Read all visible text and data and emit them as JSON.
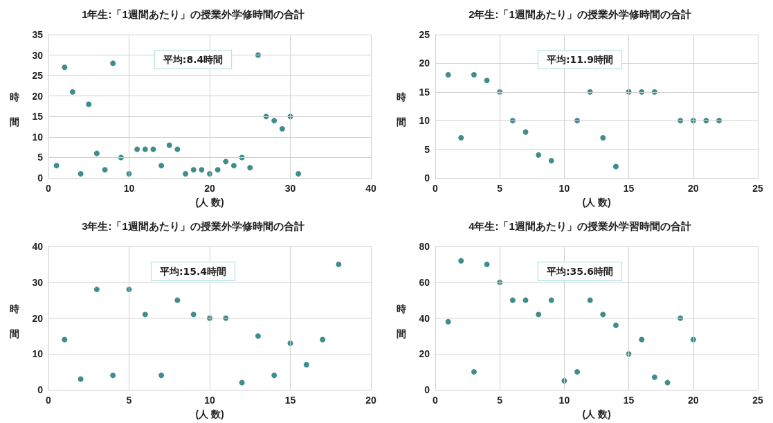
{
  "chart_data": [
    {
      "type": "scatter",
      "title": "1年生:「1週間あたり」の授業外学修時間の合計",
      "xlabel": "(人 数)",
      "ylabel": "時間",
      "annotations": [
        "平均:8.4時間"
      ],
      "x": [
        1,
        2,
        3,
        4,
        5,
        6,
        7,
        8,
        9,
        10,
        11,
        12,
        13,
        14,
        15,
        16,
        17,
        18,
        19,
        20,
        21,
        22,
        23,
        24,
        25,
        26,
        27,
        28,
        29,
        30,
        31
      ],
      "series": [
        {
          "color": "#0f7070",
          "values": [
            3,
            27,
            21,
            1,
            18,
            6,
            2,
            28,
            5,
            1,
            7,
            7,
            7,
            3,
            8,
            7,
            1,
            2,
            2,
            1,
            2,
            4,
            3,
            5,
            2.5,
            30,
            15,
            14,
            12,
            15,
            1
          ]
        }
      ],
      "xlim": [
        0,
        40
      ],
      "xticks": [
        0,
        10,
        20,
        30,
        40
      ],
      "ylim": [
        0,
        35
      ],
      "yticks": [
        0,
        5,
        10,
        15,
        20,
        25,
        30,
        35
      ],
      "grid": true,
      "marker": "circle"
    },
    {
      "type": "scatter",
      "title": "2年生:「1週間あたり」の授業外学修時間の合計",
      "xlabel": "(人 数)",
      "ylabel": "時間",
      "annotations": [
        "平均:11.9時間"
      ],
      "x": [
        1,
        2,
        3,
        4,
        5,
        6,
        7,
        8,
        9,
        11,
        12,
        13,
        14,
        15,
        16,
        17,
        19,
        20,
        21,
        22
      ],
      "series": [
        {
          "color": "#0f7070",
          "values": [
            18,
            7,
            18,
            17,
            15,
            10,
            8,
            4,
            3,
            10,
            15,
            7,
            2,
            15,
            15,
            15,
            10,
            10,
            10,
            10
          ]
        }
      ],
      "xlim": [
        0,
        25
      ],
      "xticks": [
        0,
        5,
        10,
        15,
        20,
        25
      ],
      "ylim": [
        0,
        25
      ],
      "yticks": [
        0,
        5,
        10,
        15,
        20,
        25
      ],
      "grid": true,
      "marker": "circle"
    },
    {
      "type": "scatter",
      "title": "3年生:「1週間あたり」の授業外学修時間の合計",
      "xlabel": "(人 数)",
      "ylabel": "時間",
      "annotations": [
        "平均:15.4時間"
      ],
      "x": [
        1,
        2,
        3,
        4,
        5,
        6,
        7,
        8,
        9,
        10,
        11,
        12,
        13,
        14,
        15,
        16,
        17,
        18
      ],
      "series": [
        {
          "color": "#0f7070",
          "values": [
            14,
            3,
            28,
            4,
            28,
            21,
            4,
            25,
            21,
            20,
            20,
            2,
            15,
            4,
            13,
            7,
            14,
            35
          ]
        }
      ],
      "xlim": [
        0,
        20
      ],
      "xticks": [
        0,
        5,
        10,
        15,
        20
      ],
      "ylim": [
        0,
        40
      ],
      "yticks": [
        0,
        10,
        20,
        30,
        40
      ],
      "grid": true,
      "marker": "circle"
    },
    {
      "type": "scatter",
      "title": "4年生:「1週間あたり」の授業外学習時間の合計",
      "xlabel": "(人 数)",
      "ylabel": "時間",
      "annotations": [
        "平均:35.6時間"
      ],
      "x": [
        1,
        2,
        3,
        4,
        5,
        6,
        7,
        8,
        9,
        10,
        11,
        12,
        13,
        14,
        15,
        16,
        17,
        18,
        19,
        20
      ],
      "series": [
        {
          "color": "#0f7070",
          "values": [
            38,
            72,
            10,
            70,
            60,
            50,
            50,
            42,
            50,
            5,
            10,
            50,
            42,
            36,
            20,
            28,
            7,
            4,
            40,
            28
          ]
        }
      ],
      "xlim": [
        0,
        25
      ],
      "xticks": [
        0,
        5,
        10,
        15,
        20,
        25
      ],
      "ylim": [
        0,
        80
      ],
      "yticks": [
        0,
        20,
        40,
        60,
        80
      ],
      "grid": true,
      "marker": "circle"
    }
  ]
}
